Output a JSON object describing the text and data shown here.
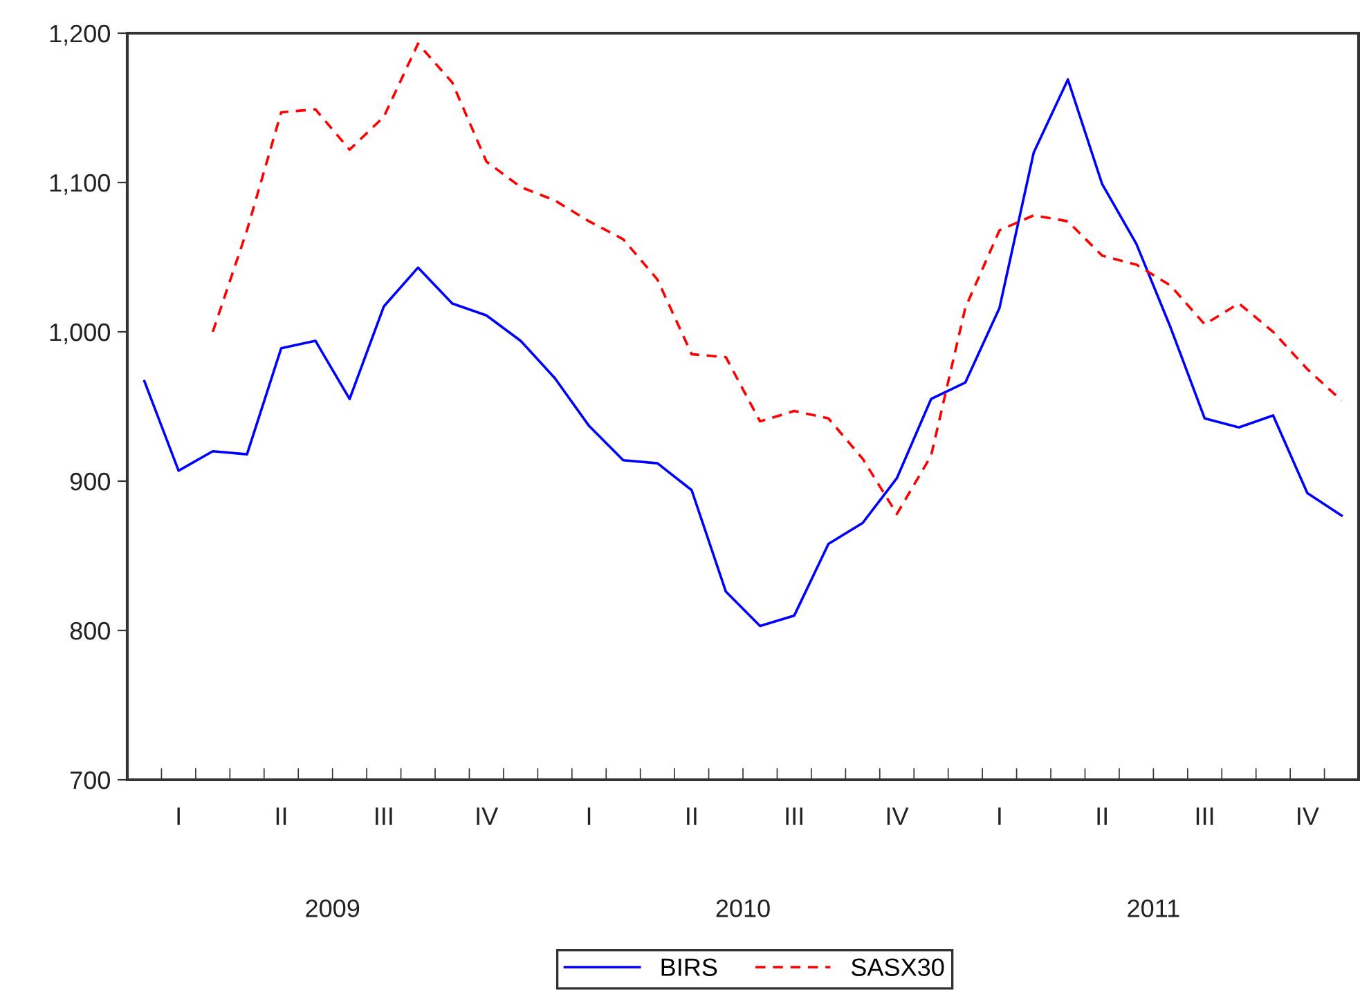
{
  "chart_data": {
    "type": "line",
    "categories": [
      null,
      "I",
      null,
      null,
      "II",
      null,
      null,
      "III",
      null,
      null,
      "IV",
      null,
      null,
      "I",
      null,
      null,
      "II",
      null,
      null,
      "III",
      null,
      null,
      "IV",
      null,
      null,
      "I",
      null,
      null,
      "II",
      null,
      null,
      "III",
      null,
      null,
      "IV",
      null
    ],
    "series": [
      {
        "name": "BIRS",
        "color": "#0000ff",
        "line_style": "solid",
        "values": [
          967,
          907,
          920,
          918,
          989,
          994,
          955,
          1017,
          1043,
          1019,
          1011,
          994,
          969,
          937,
          914,
          912,
          894,
          826,
          803,
          810,
          858,
          872,
          902,
          955,
          966,
          1016,
          1120,
          1169,
          1099,
          1059,
          1003,
          942,
          936,
          944,
          892,
          877
        ]
      },
      {
        "name": "SASX30",
        "color": "#ff0000",
        "line_style": "dashed",
        "values": [
          null,
          null,
          1000,
          1068,
          1147,
          1149,
          1122,
          1144,
          1193,
          1167,
          1114,
          1097,
          1088,
          1074,
          1062,
          1035,
          985,
          983,
          940,
          947,
          942,
          915,
          878,
          917,
          1016,
          1068,
          1078,
          1074,
          1051,
          1045,
          1031,
          1005,
          1019,
          1000,
          975,
          954
        ]
      }
    ],
    "annotations": [
      "2009",
      "2010",
      "2011"
    ],
    "ylim": [
      700,
      1200
    ],
    "yticks": [
      700,
      800,
      900,
      {
        "value": 1000,
        "label": "1,000"
      },
      {
        "value": 1100,
        "label": "1,100"
      },
      {
        "value": 1200,
        "label": "1,200"
      }
    ],
    "grid": false,
    "legend": "bottom"
  }
}
